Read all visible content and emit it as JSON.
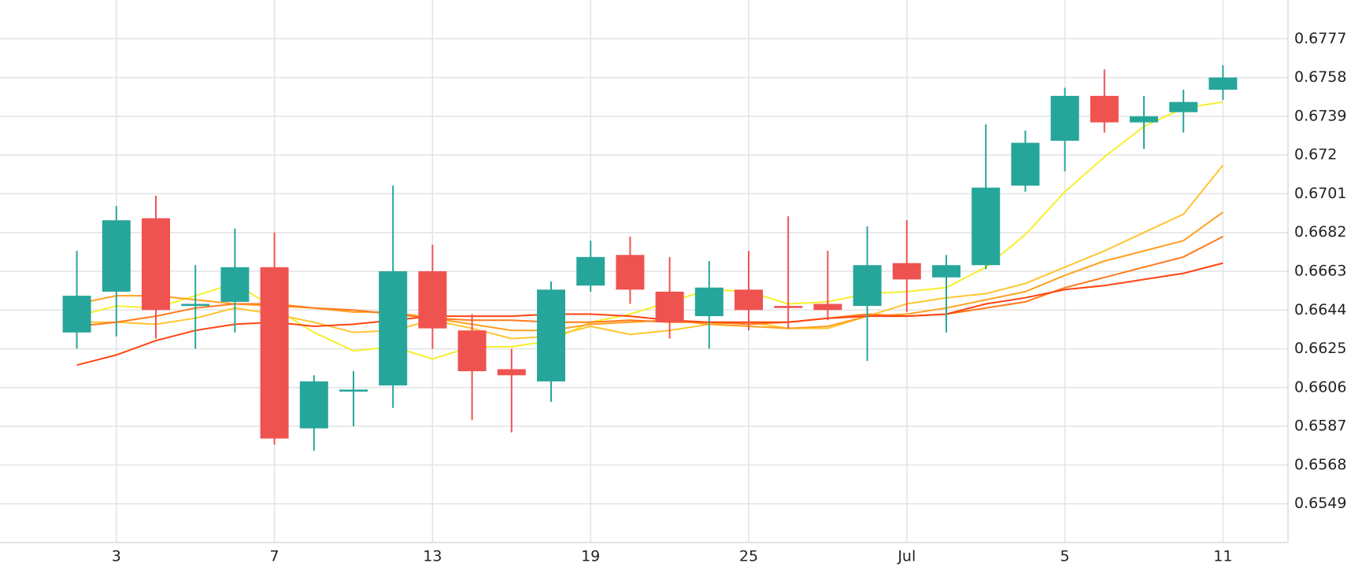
{
  "chart_data": {
    "type": "candlestick",
    "categories": [
      null,
      "3",
      null,
      null,
      null,
      "7",
      null,
      null,
      null,
      "13",
      null,
      null,
      null,
      "19",
      null,
      null,
      null,
      "25",
      null,
      null,
      null,
      "Jul",
      null,
      null,
      null,
      "5",
      null,
      null,
      null,
      "11"
    ],
    "open": [
      0.6633,
      0.6653,
      0.6689,
      0.6646,
      0.6648,
      0.6665,
      0.6586,
      0.6604,
      0.6607,
      0.6663,
      0.6634,
      0.6615,
      0.6609,
      0.6656,
      0.6671,
      0.6653,
      0.6641,
      0.6654,
      0.6646,
      0.6647,
      0.6646,
      0.6667,
      0.666,
      0.6666,
      0.6705,
      0.6727,
      0.6749,
      0.6736,
      0.6741,
      0.6752
    ],
    "high": [
      0.6673,
      0.6695,
      0.67,
      0.6666,
      0.6684,
      0.6682,
      0.6612,
      0.6614,
      0.6705,
      0.6676,
      0.6642,
      0.6625,
      0.6658,
      0.6678,
      0.668,
      0.667,
      0.6668,
      0.6673,
      0.669,
      0.6673,
      0.6685,
      0.6688,
      0.6671,
      0.6735,
      0.6732,
      0.6753,
      0.6762,
      0.6749,
      0.6752,
      0.6764
    ],
    "low": [
      0.6625,
      0.6631,
      0.663,
      0.6625,
      0.6633,
      0.6578,
      0.6575,
      0.6587,
      0.6596,
      0.6625,
      0.659,
      0.6584,
      0.6599,
      0.6653,
      0.6647,
      0.663,
      0.6625,
      0.6634,
      0.6635,
      0.6639,
      0.6619,
      0.6643,
      0.6633,
      0.6664,
      0.6702,
      0.6712,
      0.6731,
      0.6723,
      0.6731,
      0.6747
    ],
    "close": [
      0.6651,
      0.6688,
      0.6644,
      0.6647,
      0.6665,
      0.6581,
      0.6609,
      0.6605,
      0.6663,
      0.6635,
      0.6614,
      0.6612,
      0.6654,
      0.667,
      0.6654,
      0.6638,
      0.6655,
      0.6644,
      0.6645,
      0.6644,
      0.6666,
      0.6659,
      0.6666,
      0.6704,
      0.6726,
      0.6749,
      0.6736,
      0.6739,
      0.6746,
      0.6758
    ],
    "up_color": "#26a69a",
    "down_color": "#ef5350",
    "lines": [
      {
        "color": "#f6ef2c",
        "values": [
          0.6641,
          0.6646,
          0.6645,
          0.6651,
          0.6657,
          0.6645,
          0.6633,
          0.6624,
          0.6626,
          0.662,
          0.6626,
          0.6626,
          0.6629,
          0.6638,
          0.6642,
          0.6648,
          0.6654,
          0.6653,
          0.6647,
          0.6648,
          0.6652,
          0.6653,
          0.6655,
          0.6665,
          0.6681,
          0.6702,
          0.6719,
          0.6734,
          0.6743,
          0.6746
        ]
      },
      {
        "color": "#ffc530",
        "values": [
          0.6638,
          0.6638,
          0.6637,
          0.664,
          0.6645,
          0.6642,
          0.6638,
          0.6633,
          0.6634,
          0.6639,
          0.6635,
          0.663,
          0.6631,
          0.6636,
          0.6632,
          0.6634,
          0.6637,
          0.6638,
          0.6635,
          0.6635,
          0.6641,
          0.6647,
          0.665,
          0.6652,
          0.6657,
          0.6665,
          0.6673,
          0.6682,
          0.6691,
          0.6715
        ]
      },
      {
        "color": "#ffa020",
        "values": [
          0.6647,
          0.6651,
          0.6651,
          0.6649,
          0.6647,
          0.6646,
          0.6645,
          0.6643,
          0.6643,
          0.664,
          0.6637,
          0.6634,
          0.6634,
          0.6637,
          0.6638,
          0.6639,
          0.6637,
          0.6636,
          0.6635,
          0.6636,
          0.6641,
          0.6642,
          0.6645,
          0.6649,
          0.6653,
          0.6661,
          0.6668,
          0.6673,
          0.6678,
          0.6692
        ]
      },
      {
        "color": "#ff7a1c",
        "values": [
          0.6636,
          0.6638,
          0.6641,
          0.6645,
          0.6647,
          0.6647,
          0.6645,
          0.6644,
          0.6642,
          0.664,
          0.6639,
          0.6639,
          0.6638,
          0.6638,
          0.6639,
          0.6638,
          0.6638,
          0.6637,
          0.6638,
          0.664,
          0.6642,
          0.6641,
          0.6642,
          0.6645,
          0.6648,
          0.6655,
          0.666,
          0.6665,
          0.667,
          0.668
        ]
      },
      {
        "color": "#ff4410",
        "values": [
          0.6617,
          0.6622,
          0.6629,
          0.6634,
          0.6637,
          0.6638,
          0.6636,
          0.6637,
          0.6639,
          0.6641,
          0.6641,
          0.6641,
          0.6642,
          0.6642,
          0.6641,
          0.6639,
          0.6638,
          0.6638,
          0.6638,
          0.664,
          0.6641,
          0.6641,
          0.6642,
          0.6647,
          0.665,
          0.6654,
          0.6656,
          0.6659,
          0.6662,
          0.6667
        ]
      }
    ],
    "ylim": [
      0.653,
      0.6796
    ],
    "yticks": [
      0.6549,
      0.6568,
      0.6587,
      0.6606,
      0.6625,
      0.6644,
      0.6663,
      0.6682,
      0.6701,
      0.672,
      0.6739,
      0.6758,
      0.6777
    ],
    "grid": true
  }
}
